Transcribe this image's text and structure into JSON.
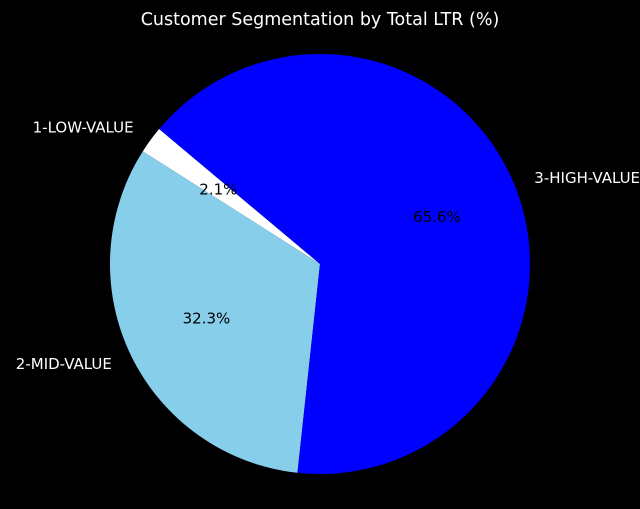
{
  "chart_data": {
    "type": "pie",
    "title": "Customer Segmentation by Total LTR (%)",
    "categories": [
      "1-LOW-VALUE",
      "2-MID-VALUE",
      "3-HIGH-VALUE"
    ],
    "values": [
      2.1,
      32.3,
      65.6
    ],
    "value_labels": [
      "2.1%",
      "32.3%",
      "65.6%"
    ],
    "colors": [
      "#ffffff",
      "#87ceeb",
      "#0000ff"
    ],
    "start_angle_deg": 140,
    "direction": "counterclockwise",
    "background": "#000000"
  }
}
